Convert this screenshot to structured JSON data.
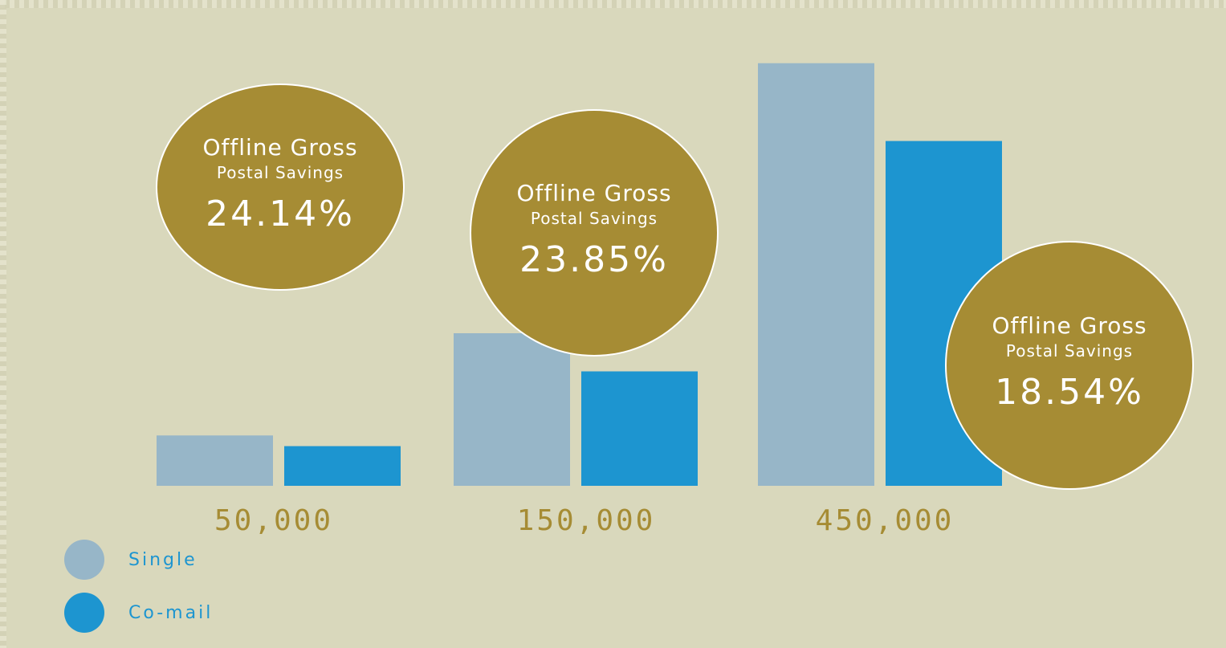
{
  "colors": {
    "background": "#d9d8bc",
    "single": "#97b6c8",
    "comail": "#1d95d0",
    "bubble": "#a68c34",
    "category_label": "#a68c34",
    "legend_text": "#1d95d0"
  },
  "chart_data": {
    "type": "bar",
    "categories": [
      "50,000",
      "150,000",
      "450,000"
    ],
    "series": [
      {
        "name": "Single",
        "values": [
          33,
          100,
          277
        ]
      },
      {
        "name": "Co-mail",
        "values": [
          26,
          75,
          226
        ]
      }
    ],
    "ylim": [
      0,
      280
    ],
    "grid": false,
    "legend": "bottom-left",
    "annotations": [
      {
        "category": "50,000",
        "title": "Offline Gross",
        "subtitle": "Postal Savings",
        "value": "24.14%"
      },
      {
        "category": "150,000",
        "title": "Offline Gross",
        "subtitle": "Postal Savings",
        "value": "23.85%"
      },
      {
        "category": "450,000",
        "title": "Offline Gross",
        "subtitle": "Postal Savings",
        "value": "18.54%"
      }
    ]
  }
}
